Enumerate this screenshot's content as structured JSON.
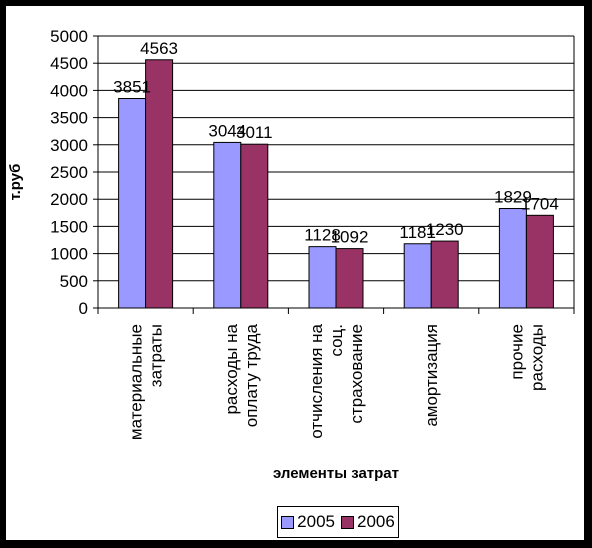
{
  "chart_data": {
    "type": "bar",
    "categories": [
      [
        "материальные",
        "затраты"
      ],
      [
        "расходы на",
        "оплату труда"
      ],
      [
        "отчисления на",
        "соц.",
        "страхование"
      ],
      [
        "амортизация"
      ],
      [
        "прочие",
        "расходы"
      ]
    ],
    "series": [
      {
        "name": "2005",
        "color": "#9999ff",
        "values": [
          3851,
          3044,
          1128,
          1181,
          1829
        ]
      },
      {
        "name": "2006",
        "color": "#993366",
        "values": [
          4563,
          3011,
          1092,
          1230,
          1704
        ]
      }
    ],
    "xlabel": "элементы затрат",
    "ylabel": "т.руб",
    "ylim": [
      0,
      5000
    ],
    "yticks": [
      0,
      500,
      1000,
      1500,
      2000,
      2500,
      3000,
      3500,
      4000,
      4500,
      5000
    ],
    "grid": true,
    "legend": "bottom"
  }
}
